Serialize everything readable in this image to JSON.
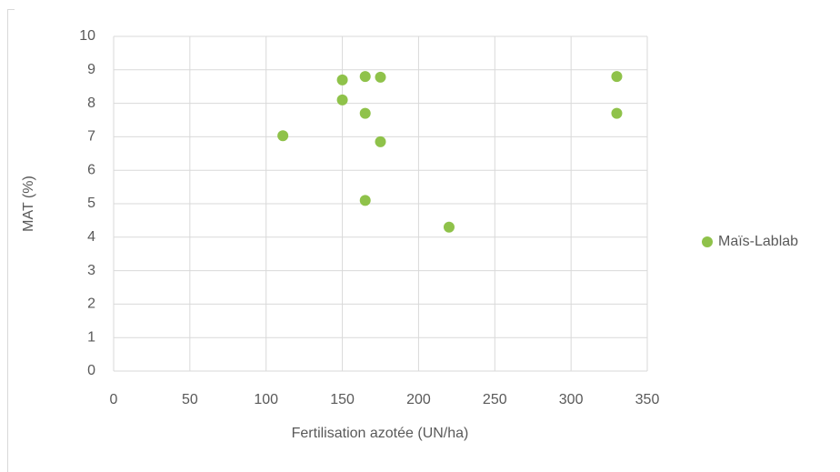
{
  "chart_data": {
    "type": "scatter",
    "x_label": "Fertilisation azotée (UN/ha)",
    "y_label": "MAT (%)",
    "series": [
      {
        "name": "Maïs-Lablab",
        "color": "#8fc24a",
        "x": [
          111,
          150,
          150,
          165,
          175,
          165,
          175,
          165,
          220,
          330,
          330
        ],
        "values": [
          7.03,
          8.7,
          8.1,
          8.8,
          8.78,
          7.7,
          6.85,
          5.1,
          4.3,
          8.8,
          7.7
        ]
      }
    ],
    "xlim": [
      0,
      350
    ],
    "xticks": [
      0,
      50,
      100,
      150,
      200,
      250,
      300,
      350
    ],
    "ylim": [
      0,
      10
    ],
    "yticks": [
      0,
      1,
      2,
      3,
      4,
      5,
      6,
      7,
      8,
      9,
      10
    ],
    "grid": true,
    "legend": "right"
  }
}
